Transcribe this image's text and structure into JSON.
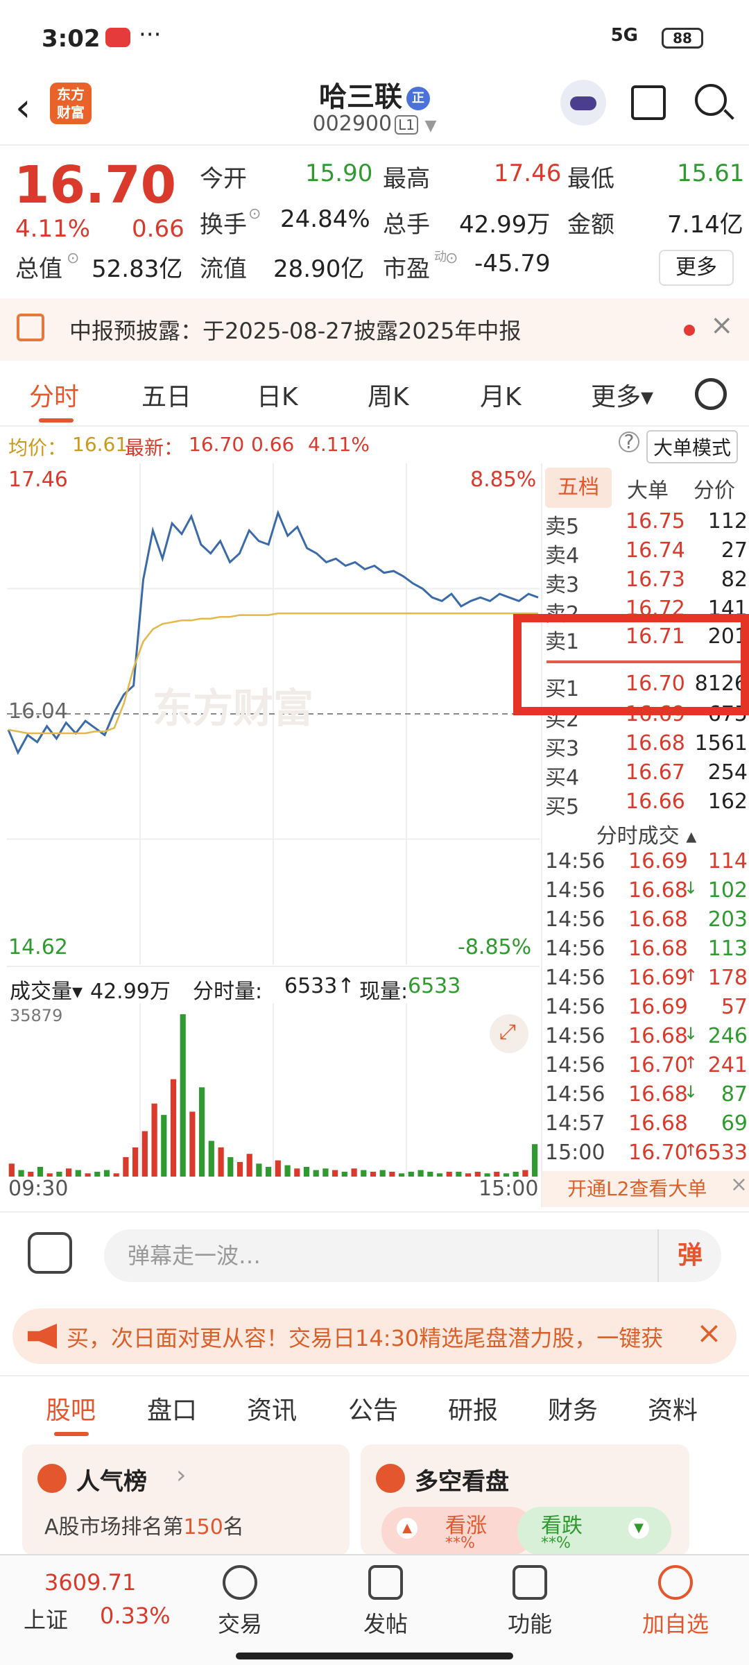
{
  "status": {
    "time": "3:02",
    "dots": "···",
    "network": "5G",
    "battery": "88"
  },
  "header": {
    "logo": "东方\n财富",
    "name": "哈三联",
    "badge": "正",
    "code": "002900",
    "level": "L1"
  },
  "quote": {
    "price": "16.70",
    "pct": "4.11%",
    "change": "0.66",
    "fields": [
      {
        "label": "今开",
        "value": "15.90",
        "color": "green"
      },
      {
        "label": "最高",
        "value": "17.46",
        "color": "red"
      },
      {
        "label": "最低",
        "value": "15.61",
        "color": "green"
      },
      {
        "label": "换手",
        "value": "24.84%",
        "color": "dark"
      },
      {
        "label": "总手",
        "value": "42.99万",
        "color": "dark"
      },
      {
        "label": "金额",
        "value": "7.14亿",
        "color": "dark"
      },
      {
        "label": "总值",
        "value": "52.83亿",
        "color": "dark"
      },
      {
        "label": "流值",
        "value": "28.90亿",
        "color": "dark"
      },
      {
        "label": "市盈",
        "value": "-45.79",
        "color": "dark"
      }
    ],
    "pe_sup": "动",
    "more": "更多"
  },
  "notice": {
    "text": "中报预披露：于2025-08-27披露2025年中报"
  },
  "tabs": [
    "分时",
    "五日",
    "日K",
    "周K",
    "月K",
    "更多▾"
  ],
  "infoline": {
    "avg_label": "均价：",
    "avg": "16.61",
    "last_label": "最新：",
    "last": "16.70",
    "chg": "0.66",
    "pct": "4.11%",
    "mode": "大单模式"
  },
  "chart_data": {
    "type": "line",
    "title": "",
    "y_top": "17.46",
    "y_bottom": "14.62",
    "y_ref": "16.04",
    "pct_top": "8.85%",
    "pct_bottom": "-8.85%",
    "ylim": [
      14.62,
      17.46
    ],
    "ref": 16.04,
    "watermark": "东方财富",
    "series": [
      {
        "values": [
          15.95,
          15.82,
          15.92,
          15.88,
          15.97,
          15.9,
          15.99,
          15.93,
          16.0,
          15.96,
          15.92,
          16.05,
          16.15,
          16.2,
          16.8,
          17.08,
          16.92,
          17.12,
          17.06,
          17.16,
          17.0,
          16.95,
          17.02,
          16.9,
          16.95,
          17.08,
          17.02,
          17.0,
          17.18,
          17.05,
          17.1,
          16.98,
          16.95,
          16.9,
          16.92,
          16.88,
          16.9,
          16.86,
          16.88,
          16.84,
          16.85,
          16.82,
          16.78,
          16.75,
          16.7,
          16.68,
          16.72,
          16.65,
          16.68,
          16.7,
          16.68,
          16.72,
          16.7,
          16.68,
          16.72,
          16.7
        ]
      },
      {
        "values": [
          15.95,
          15.94,
          15.93,
          15.93,
          15.93,
          15.93,
          15.93,
          15.93,
          15.93,
          15.94,
          15.94,
          15.96,
          16.1,
          16.3,
          16.45,
          16.52,
          16.55,
          16.56,
          16.57,
          16.57,
          16.58,
          16.58,
          16.59,
          16.59,
          16.6,
          16.6,
          16.6,
          16.6,
          16.61,
          16.61,
          16.61,
          16.61,
          16.61,
          16.61,
          16.61,
          16.61,
          16.61,
          16.61,
          16.61,
          16.61,
          16.61,
          16.61,
          16.61,
          16.61,
          16.61,
          16.61,
          16.61,
          16.61,
          16.61,
          16.61,
          16.61,
          16.61,
          16.61,
          16.61,
          16.61,
          16.61
        ]
      }
    ],
    "volume": {
      "max_label": "35879",
      "values": [
        8,
        4,
        3,
        6,
        2,
        3,
        5,
        4,
        2,
        3,
        4,
        2,
        12,
        18,
        28,
        45,
        38,
        60,
        100,
        40,
        55,
        22,
        18,
        12,
        9,
        14,
        8,
        6,
        10,
        7,
        5,
        6,
        4,
        5,
        4,
        3,
        5,
        4,
        3,
        4,
        3,
        2,
        3,
        4,
        3,
        2,
        3,
        3,
        2,
        3,
        2,
        3,
        2,
        3,
        4,
        20
      ]
    },
    "x_start": "09:30",
    "x_end": "15:00"
  },
  "volume_header": {
    "label": "成交量▾",
    "total": "42.99万",
    "tick_label": "分时量:",
    "tick": "6533↑",
    "now_label": "现量:",
    "now": "6533"
  },
  "book": {
    "tabs": [
      "五档",
      "大单",
      "分价"
    ],
    "asks": [
      {
        "label": "卖5",
        "price": "16.75",
        "vol": "112"
      },
      {
        "label": "卖4",
        "price": "16.74",
        "vol": "27"
      },
      {
        "label": "卖3",
        "price": "16.73",
        "vol": "82"
      },
      {
        "label": "卖2",
        "price": "16.72",
        "vol": "141"
      },
      {
        "label": "卖1",
        "price": "16.71",
        "vol": "201"
      }
    ],
    "bids": [
      {
        "label": "买1",
        "price": "16.70",
        "vol": "8126"
      },
      {
        "label": "买2",
        "price": "16.69",
        "vol": "675"
      },
      {
        "label": "买3",
        "price": "16.68",
        "vol": "1561"
      },
      {
        "label": "买4",
        "price": "16.67",
        "vol": "254"
      },
      {
        "label": "买5",
        "price": "16.66",
        "vol": "162"
      }
    ],
    "trade_head": "分时成交 ▴",
    "trades": [
      {
        "time": "14:56",
        "price": "16.69",
        "dir": "",
        "vol": "114",
        "c": "red"
      },
      {
        "time": "14:56",
        "price": "16.68",
        "dir": "↓",
        "vol": "102",
        "c": "green"
      },
      {
        "time": "14:56",
        "price": "16.68",
        "dir": "",
        "vol": "203",
        "c": "green"
      },
      {
        "time": "14:56",
        "price": "16.68",
        "dir": "",
        "vol": "113",
        "c": "green"
      },
      {
        "time": "14:56",
        "price": "16.69",
        "dir": "↑",
        "vol": "178",
        "c": "red"
      },
      {
        "time": "14:56",
        "price": "16.69",
        "dir": "",
        "vol": "57",
        "c": "red"
      },
      {
        "time": "14:56",
        "price": "16.68",
        "dir": "↓",
        "vol": "246",
        "c": "green"
      },
      {
        "time": "14:56",
        "price": "16.70",
        "dir": "↑",
        "vol": "241",
        "c": "red"
      },
      {
        "time": "14:56",
        "price": "16.68",
        "dir": "↓",
        "vol": "87",
        "c": "green"
      },
      {
        "time": "14:57",
        "price": "16.68",
        "dir": "",
        "vol": "69",
        "c": "green"
      },
      {
        "time": "15:00",
        "price": "16.70",
        "dir": "↑",
        "vol": "6533",
        "c": "red"
      }
    ],
    "l2": "开通L2查看大单"
  },
  "comment": {
    "placeholder": "弹幕走一波…",
    "dan": "弹"
  },
  "ad": {
    "text": "买，次日面对更从容！交易日14:30精选尾盘潜力股，一键获"
  },
  "ctabs": [
    "股吧",
    "盘口",
    "资讯",
    "公告",
    "研报",
    "财务",
    "资料"
  ],
  "cards": {
    "hot": {
      "title": "人气榜",
      "arrow": "›",
      "sub_pre": "A股市场排名第",
      "rank": "150",
      "sub_post": "名"
    },
    "vs": {
      "title": "多空看盘",
      "up": "看涨",
      "down": "看跌",
      "stars": "**%"
    }
  },
  "bottom": {
    "index_value": "3609.71",
    "index_name": "上证",
    "index_pct": "0.33%",
    "nav": [
      "交易",
      "发帖",
      "功能",
      "加自选"
    ]
  }
}
